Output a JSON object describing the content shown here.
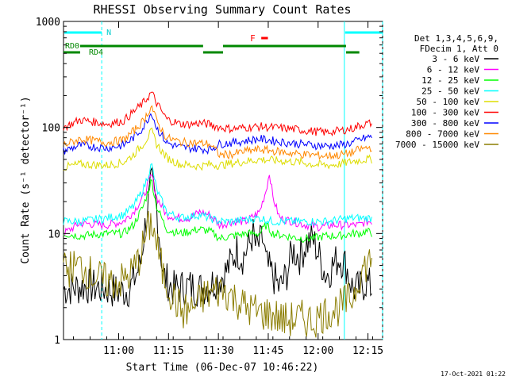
{
  "chart_data": {
    "type": "line",
    "title": "RHESSI Observing Summary Count Rates",
    "xlabel": "Start Time (06-Dec-07 10:46:22)",
    "ylabel": "Count Rate (s⁻¹ detector⁻¹)",
    "y_scale": "log",
    "ylim": [
      1,
      1000
    ],
    "xlim_minutes_after_start": [
      -3,
      93
    ],
    "x_ticks": [
      {
        "label": "11:00",
        "minute": 13.6
      },
      {
        "label": "11:15",
        "minute": 28.6
      },
      {
        "label": "11:30",
        "minute": 43.6
      },
      {
        "label": "11:45",
        "minute": 58.6
      },
      {
        "label": "12:00",
        "minute": 73.6
      },
      {
        "label": "12:15",
        "minute": 88.6
      }
    ],
    "y_ticks": [
      {
        "label": "1",
        "value": 1
      },
      {
        "label": "10",
        "value": 10
      },
      {
        "label": "100",
        "value": 100
      },
      {
        "label": "1000",
        "value": 1000
      }
    ],
    "legend_header": [
      "Det 1,3,4,5,6,9,",
      "FDecim 1, Att 0"
    ],
    "legend_position": "right",
    "annotations": {
      "night_label": "N",
      "flare_label": "F",
      "rd0_label": "RD0",
      "rd4_label": "RD4",
      "date_stamp": "17-Oct-2021 01:22"
    },
    "series": [
      {
        "name": "3 - 6 keV",
        "color": "#000000",
        "points": [
          [
            -3,
            3
          ],
          [
            4,
            3.2
          ],
          [
            10,
            3
          ],
          [
            14,
            2.8
          ],
          [
            17,
            3
          ],
          [
            20,
            5
          ],
          [
            22,
            15
          ],
          [
            23.5,
            30
          ],
          [
            25,
            18
          ],
          [
            27,
            4
          ],
          [
            30,
            3
          ],
          [
            35,
            3.2
          ],
          [
            38,
            3
          ],
          [
            41,
            3.3
          ],
          [
            45,
            4
          ],
          [
            47,
            5
          ],
          [
            49,
            7
          ],
          [
            51,
            6
          ],
          [
            53,
            8
          ],
          [
            54,
            10
          ],
          [
            55,
            7
          ],
          [
            57,
            9
          ],
          [
            58,
            5
          ],
          [
            60,
            4
          ],
          [
            62,
            3
          ],
          [
            64,
            4
          ],
          [
            66,
            7
          ],
          [
            68,
            6
          ],
          [
            70,
            8
          ],
          [
            72,
            9
          ],
          [
            74,
            6
          ],
          [
            76,
            4
          ],
          [
            78,
            5
          ],
          [
            80,
            6
          ],
          [
            82,
            5
          ],
          [
            84,
            3
          ],
          [
            86,
            3
          ],
          [
            88,
            3.5
          ],
          [
            90,
            3
          ]
        ]
      },
      {
        "name": "6 - 12 keV",
        "color": "#ff00ff",
        "points": [
          [
            -3,
            10
          ],
          [
            2,
            12.5
          ],
          [
            10,
            12
          ],
          [
            15,
            13
          ],
          [
            18,
            16
          ],
          [
            21,
            22
          ],
          [
            23.5,
            36
          ],
          [
            25,
            22
          ],
          [
            28,
            15
          ],
          [
            32,
            14
          ],
          [
            35,
            14
          ],
          [
            38,
            16
          ],
          [
            41,
            15
          ],
          [
            44,
            12
          ],
          [
            48,
            13
          ],
          [
            52,
            13
          ],
          [
            56,
            16
          ],
          [
            58,
            26
          ],
          [
            59,
            38
          ],
          [
            60,
            22
          ],
          [
            62,
            14
          ],
          [
            66,
            13
          ],
          [
            70,
            12
          ],
          [
            74,
            11.5
          ],
          [
            78,
            12
          ],
          [
            82,
            12
          ],
          [
            86,
            12
          ],
          [
            88,
            13
          ],
          [
            90,
            13
          ]
        ]
      },
      {
        "name": "12 - 25 keV",
        "color": "#00ff00",
        "points": [
          [
            -3,
            10
          ],
          [
            2,
            9.5
          ],
          [
            10,
            10
          ],
          [
            15,
            10
          ],
          [
            18,
            12
          ],
          [
            21,
            18
          ],
          [
            23.5,
            32
          ],
          [
            25,
            18
          ],
          [
            28,
            11
          ],
          [
            32,
            10
          ],
          [
            35,
            10.5
          ],
          [
            38,
            11
          ],
          [
            41,
            10.5
          ],
          [
            44,
            9
          ],
          [
            48,
            9.5
          ],
          [
            52,
            10
          ],
          [
            56,
            10
          ],
          [
            58,
            12
          ],
          [
            60,
            10
          ],
          [
            64,
            9.5
          ],
          [
            68,
            9
          ],
          [
            72,
            9
          ],
          [
            76,
            9.5
          ],
          [
            80,
            9.5
          ],
          [
            84,
            10
          ],
          [
            86,
            10
          ],
          [
            88,
            10.5
          ],
          [
            90,
            10
          ]
        ]
      },
      {
        "name": "25 - 50 keV",
        "color": "#00ffff",
        "points": [
          [
            -3,
            13
          ],
          [
            2,
            13
          ],
          [
            10,
            14
          ],
          [
            15,
            15
          ],
          [
            18,
            18
          ],
          [
            21,
            26
          ],
          [
            23.5,
            45
          ],
          [
            25,
            26
          ],
          [
            28,
            16
          ],
          [
            32,
            14
          ],
          [
            35,
            14.5
          ],
          [
            38,
            15
          ],
          [
            41,
            14
          ],
          [
            44,
            13
          ],
          [
            48,
            13
          ],
          [
            52,
            13.5
          ],
          [
            56,
            14
          ],
          [
            60,
            13
          ],
          [
            64,
            13
          ],
          [
            68,
            13
          ],
          [
            72,
            13
          ],
          [
            76,
            13
          ],
          [
            80,
            13.5
          ],
          [
            84,
            14
          ],
          [
            86,
            14
          ],
          [
            88,
            14
          ],
          [
            90,
            14
          ]
        ]
      },
      {
        "name": "50 - 100 keV",
        "color": "#dddd00",
        "points": [
          [
            -3,
            42
          ],
          [
            2,
            45
          ],
          [
            10,
            44
          ],
          [
            15,
            47
          ],
          [
            18,
            55
          ],
          [
            21,
            70
          ],
          [
            23.5,
            92
          ],
          [
            25,
            70
          ],
          [
            28,
            52
          ],
          [
            32,
            45
          ],
          [
            35,
            44
          ],
          [
            38,
            43
          ],
          [
            41,
            45
          ],
          [
            44,
            44
          ],
          [
            48,
            46
          ],
          [
            52,
            48
          ],
          [
            56,
            50
          ],
          [
            60,
            49
          ],
          [
            64,
            48
          ],
          [
            68,
            47
          ],
          [
            72,
            45
          ],
          [
            76,
            44
          ],
          [
            80,
            45
          ],
          [
            84,
            48
          ],
          [
            86,
            49
          ],
          [
            88,
            50
          ],
          [
            90,
            50
          ]
        ]
      },
      {
        "name": "100 - 300 keV",
        "color": "#ff0000",
        "points": [
          [
            -3,
            100
          ],
          [
            2,
            118
          ],
          [
            10,
            108
          ],
          [
            15,
            115
          ],
          [
            18,
            140
          ],
          [
            21,
            170
          ],
          [
            23.5,
            215
          ],
          [
            25,
            170
          ],
          [
            28,
            120
          ],
          [
            32,
            108
          ],
          [
            35,
            107
          ],
          [
            38,
            110
          ],
          [
            41,
            107
          ],
          [
            44,
            100
          ],
          [
            48,
            97
          ],
          [
            52,
            100
          ],
          [
            56,
            102
          ],
          [
            60,
            100
          ],
          [
            64,
            98
          ],
          [
            68,
            95
          ],
          [
            72,
            92
          ],
          [
            76,
            90
          ],
          [
            80,
            93
          ],
          [
            84,
            98
          ],
          [
            86,
            104
          ],
          [
            88,
            108
          ],
          [
            90,
            110
          ]
        ]
      },
      {
        "name": "300 - 800 keV",
        "color": "#0000ff",
        "points": [
          [
            -3,
            60
          ],
          [
            2,
            68
          ],
          [
            10,
            64
          ],
          [
            15,
            68
          ],
          [
            18,
            80
          ],
          [
            21,
            100
          ],
          [
            23.5,
            140
          ],
          [
            25,
            100
          ],
          [
            28,
            72
          ],
          [
            32,
            65
          ],
          [
            35,
            64
          ],
          [
            38,
            63
          ],
          [
            41,
            62
          ],
          [
            44,
            70
          ],
          [
            48,
            72
          ],
          [
            52,
            75
          ],
          [
            56,
            78
          ],
          [
            60,
            75
          ],
          [
            64,
            72
          ],
          [
            68,
            70
          ],
          [
            72,
            68
          ],
          [
            76,
            67
          ],
          [
            80,
            68
          ],
          [
            84,
            72
          ],
          [
            86,
            76
          ],
          [
            88,
            80
          ],
          [
            90,
            82
          ]
        ]
      },
      {
        "name": "800 - 7000 keV",
        "color": "#ff8800",
        "points": [
          [
            -3,
            68
          ],
          [
            2,
            78
          ],
          [
            10,
            72
          ],
          [
            15,
            76
          ],
          [
            18,
            92
          ],
          [
            21,
            115
          ],
          [
            23.5,
            160
          ],
          [
            25,
            115
          ],
          [
            28,
            80
          ],
          [
            32,
            73
          ],
          [
            35,
            72
          ],
          [
            38,
            71
          ],
          [
            41,
            70
          ],
          [
            44,
            55
          ],
          [
            48,
            56
          ],
          [
            52,
            60
          ],
          [
            56,
            62
          ],
          [
            60,
            60
          ],
          [
            64,
            58
          ],
          [
            68,
            56
          ],
          [
            72,
            55
          ],
          [
            76,
            54
          ],
          [
            80,
            55
          ],
          [
            84,
            58
          ],
          [
            86,
            62
          ],
          [
            88,
            64
          ],
          [
            90,
            65
          ]
        ]
      },
      {
        "name": "7000 - 15000 keV",
        "color": "#8b7d00",
        "points": [
          [
            -3,
            4.5
          ],
          [
            2,
            5
          ],
          [
            6,
            4
          ],
          [
            10,
            3.5
          ],
          [
            14,
            3.5
          ],
          [
            17,
            4
          ],
          [
            20,
            6
          ],
          [
            22,
            10
          ],
          [
            23.5,
            13
          ],
          [
            25,
            8
          ],
          [
            27,
            4
          ],
          [
            30,
            2.5
          ],
          [
            33,
            1.8
          ],
          [
            36,
            2
          ],
          [
            39,
            2.5
          ],
          [
            42,
            2.8
          ],
          [
            45,
            3
          ],
          [
            48,
            2.5
          ],
          [
            52,
            2
          ],
          [
            56,
            1.8
          ],
          [
            60,
            1.7
          ],
          [
            64,
            1.5
          ],
          [
            68,
            1.6
          ],
          [
            72,
            1.5
          ],
          [
            76,
            1.8
          ],
          [
            80,
            2
          ],
          [
            84,
            2.5
          ],
          [
            86,
            4
          ],
          [
            88,
            5
          ],
          [
            90,
            6
          ]
        ]
      }
    ],
    "attenuator_bars": [
      {
        "label": "RD0",
        "color": "#008800",
        "start_minute": -3,
        "end_minute": 2,
        "row": 2
      },
      {
        "label": "RD4",
        "color": "#008800",
        "start_minute": 2,
        "end_minute": 39,
        "row": 1
      },
      {
        "label": "",
        "color": "#008800",
        "start_minute": 39,
        "end_minute": 45,
        "row": 2
      },
      {
        "label": "",
        "color": "#008800",
        "start_minute": 45,
        "end_minute": 82,
        "row": 1
      },
      {
        "label": "",
        "color": "#008800",
        "start_minute": 82,
        "end_minute": 86,
        "row": 2
      }
    ],
    "night_intervals": [
      {
        "start_minute": -3,
        "end_minute": 8.5,
        "color": "#00ffff"
      },
      {
        "start_minute": 81.5,
        "end_minute": 93,
        "color": "#00ffff"
      }
    ],
    "flare_interval": {
      "start_minute": 56.5,
      "end_minute": 58.5,
      "color": "#ff0000"
    },
    "gaps": [
      {
        "start_minute": 39,
        "end_minute": 39.5
      },
      {
        "start_minute": 44.5,
        "end_minute": 45
      }
    ]
  }
}
